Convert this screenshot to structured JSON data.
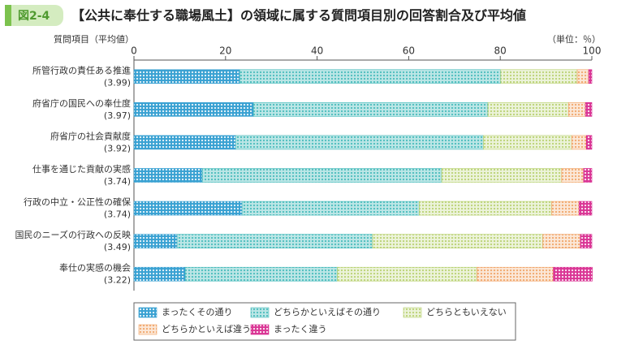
{
  "figure_label": "図2-4",
  "chart_data": {
    "type": "stacked-barh",
    "title": "【公共に奉仕する職場風土】の領域に属する質問項目別の回答割合及び平均値",
    "y_axis_label": "質問項目（平均値）",
    "unit_label": "（単位：％）",
    "categories": [
      "所管行政の責任ある推進",
      "府省庁の国民への奉仕度",
      "府省庁の社会貢献度",
      "仕事を通じた貢献の実感",
      "行政の中立・公正性の確保",
      "国民のニーズの行政への反映",
      "奉仕の実感の機会"
    ],
    "averages": [
      "(3.99)",
      "(3.97)",
      "(3.92)",
      "(3.74)",
      "(3.74)",
      "(3.49)",
      "(3.22)"
    ],
    "series": [
      {
        "name": "まったくその通り",
        "color": "#2e9ccf",
        "values": [
          23.1,
          26.1,
          22.2,
          14.9,
          23.6,
          9.4,
          11.2
        ]
      },
      {
        "name": "どちらかといえばその通り",
        "color": "#3fb8b8",
        "values": [
          57.0,
          51.2,
          54.1,
          52.3,
          38.7,
          42.7,
          33.2
        ]
      },
      {
        "name": "どちらともいえない",
        "color": "#b5cf6a",
        "values": [
          16.7,
          17.6,
          19.3,
          26.2,
          28.9,
          37.2,
          30.5
        ]
      },
      {
        "name": "どちらかといえば違う",
        "color": "#f0a060",
        "values": [
          2.5,
          3.7,
          3.2,
          4.8,
          6.0,
          8.2,
          16.7
        ]
      },
      {
        "name": "まったく違う",
        "color": "#d6208a",
        "values": [
          0.7,
          1.4,
          1.2,
          1.8,
          2.8,
          2.5,
          8.5
        ]
      }
    ],
    "xlim": [
      0,
      100
    ],
    "xticks": [
      0,
      20,
      40,
      60,
      80,
      100
    ],
    "legend": "bottom"
  }
}
